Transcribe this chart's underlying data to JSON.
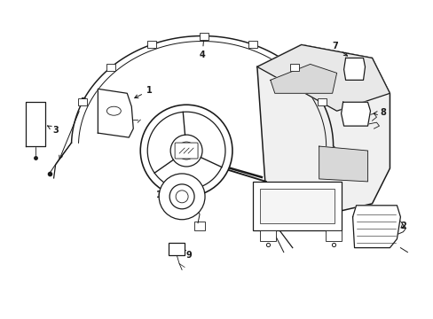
{
  "background_color": "#ffffff",
  "line_color": "#1a1a1a",
  "fig_width": 4.89,
  "fig_height": 3.6,
  "dpi": 100,
  "label_fontsize": 7
}
